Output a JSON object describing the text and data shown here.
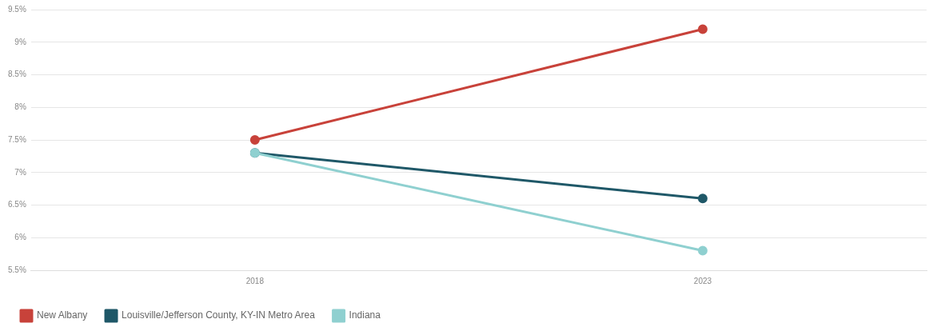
{
  "chart_data": {
    "type": "line",
    "categories": [
      "2018",
      "2023"
    ],
    "series": [
      {
        "name": "New Albany",
        "color": "#c8423a",
        "values": [
          7.5,
          9.2
        ]
      },
      {
        "name": "Louisville/Jefferson County, KY-IN Metro Area",
        "color": "#1f5868",
        "values": [
          7.3,
          6.6
        ]
      },
      {
        "name": "Indiana",
        "color": "#8fd0d0",
        "values": [
          7.3,
          5.8
        ]
      }
    ],
    "ylim": [
      5.5,
      9.5
    ],
    "yticks": [
      {
        "value": 5.5,
        "label": "5.5%"
      },
      {
        "value": 6,
        "label": "6%"
      },
      {
        "value": 6.5,
        "label": "6.5%"
      },
      {
        "value": 7,
        "label": "7%"
      },
      {
        "value": 7.5,
        "label": "7.5%"
      },
      {
        "value": 8,
        "label": "8%"
      },
      {
        "value": 8.5,
        "label": "8.5%"
      },
      {
        "value": 9,
        "label": "9%"
      },
      {
        "value": 9.5,
        "label": "9.5%"
      }
    ],
    "grid": "y",
    "legend": "bottom",
    "marker": "circle",
    "line_style": "solid"
  }
}
